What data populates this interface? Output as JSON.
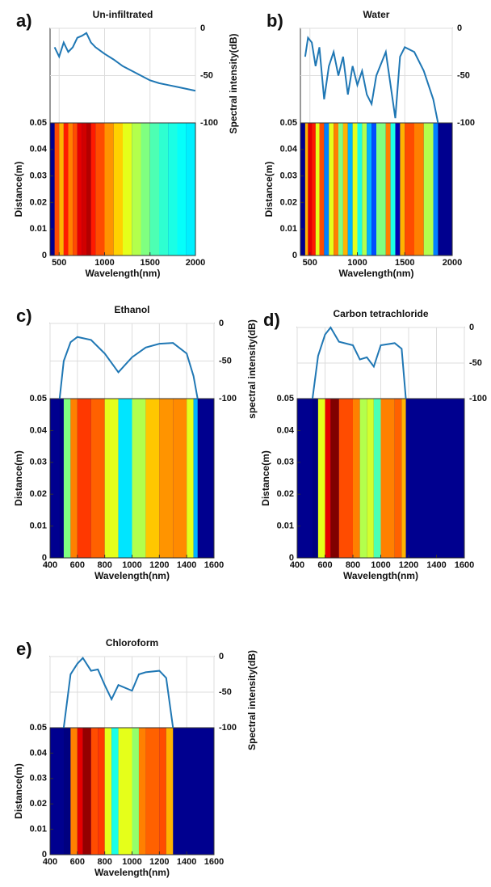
{
  "chart_data": [
    {
      "type": "line",
      "panel_label": "a)",
      "title": "Un-infiltrated",
      "x_label": "Wavelength(nm)",
      "y_label": "Distance(m)",
      "y2_label": "Spectral intensity(dB)",
      "x": [
        450,
        500,
        550,
        600,
        650,
        700,
        750,
        800,
        850,
        900,
        1000,
        1100,
        1200,
        1300,
        1400,
        1500,
        1600,
        1700,
        1800,
        1900,
        2000
      ],
      "values": [
        -20,
        -30,
        -15,
        -25,
        -20,
        -10,
        -8,
        -5,
        -15,
        -20,
        -27,
        -33,
        -40,
        -45,
        -50,
        -55,
        -58,
        -60,
        -62,
        -64,
        -66
      ],
      "color": "#1f77b4",
      "xlim": [
        400,
        2000
      ],
      "xticks": [
        500,
        1000,
        1500,
        2000
      ],
      "ylim": [
        0,
        0.05
      ],
      "yticks": [
        0,
        0.01,
        0.02,
        0.03,
        0.04,
        0.05
      ],
      "y2lim": [
        -100,
        0
      ],
      "y2ticks": [
        0,
        -50,
        -100
      ]
    },
    {
      "type": "line",
      "panel_label": "b)",
      "title": "Water",
      "x_label": "Wavelength(nm)",
      "y_label": "Distance(m)",
      "x": [
        450,
        480,
        520,
        560,
        600,
        650,
        700,
        750,
        800,
        850,
        900,
        950,
        1000,
        1050,
        1100,
        1150,
        1200,
        1300,
        1350,
        1400,
        1450,
        1500,
        1600,
        1700,
        1800,
        1850
      ],
      "values": [
        -30,
        -10,
        -15,
        -40,
        -20,
        -75,
        -40,
        -25,
        -50,
        -30,
        -70,
        -40,
        -60,
        -45,
        -70,
        -80,
        -50,
        -25,
        -60,
        -95,
        -30,
        -20,
        -25,
        -45,
        -75,
        -100
      ],
      "color": "#1f77b4",
      "xlim": [
        400,
        2000
      ],
      "xticks": [
        500,
        1000,
        1500,
        2000
      ],
      "ylim": [
        0,
        0.05
      ],
      "yticks": [
        0,
        0.01,
        0.02,
        0.03,
        0.04,
        0.05
      ],
      "y2lim": [
        -100,
        0
      ],
      "y2ticks": [
        0,
        -50,
        -100
      ]
    },
    {
      "type": "line",
      "panel_label": "c)",
      "title": "Ethanol",
      "x_label": "Wavelength(nm)",
      "y_label": "Distance(m)",
      "y2_label": "spectral intensity(dB)",
      "x": [
        470,
        500,
        550,
        600,
        700,
        800,
        900,
        1000,
        1100,
        1200,
        1300,
        1400,
        1450,
        1480
      ],
      "values": [
        -100,
        -50,
        -25,
        -18,
        -22,
        -40,
        -65,
        -45,
        -32,
        -27,
        -26,
        -40,
        -70,
        -100
      ],
      "color": "#1f77b4",
      "xlim": [
        400,
        1600
      ],
      "xticks": [
        400,
        600,
        800,
        1000,
        1200,
        1400,
        1600
      ],
      "ylim": [
        0,
        0.05
      ],
      "yticks": [
        0,
        0.01,
        0.02,
        0.03,
        0.04,
        0.05
      ],
      "y2lim": [
        -100,
        0
      ],
      "y2ticks": [
        0,
        -50,
        -100
      ]
    },
    {
      "type": "line",
      "panel_label": "d)",
      "title": "Carbon tetrachloride",
      "x_label": "Wavelength(nm)",
      "y_label": "Distance(m)",
      "x": [
        510,
        550,
        600,
        640,
        700,
        800,
        850,
        900,
        950,
        1000,
        1100,
        1150,
        1180
      ],
      "values": [
        -100,
        -40,
        -10,
        0,
        -20,
        -25,
        -45,
        -42,
        -55,
        -25,
        -22,
        -30,
        -100
      ],
      "color": "#1f77b4",
      "xlim": [
        400,
        1600
      ],
      "xticks": [
        400,
        600,
        800,
        1000,
        1200,
        1400,
        1600
      ],
      "ylim": [
        0,
        0.05
      ],
      "yticks": [
        0,
        0.01,
        0.02,
        0.03,
        0.04,
        0.05
      ],
      "y2lim": [
        -100,
        0
      ],
      "y2ticks": [
        0,
        -50,
        -100
      ]
    },
    {
      "type": "line",
      "panel_label": "e)",
      "title": "Chloroform",
      "x_label": "Wavelength(nm)",
      "y_label": "Distance(m)",
      "y2_label": "Spectral intensity(dB)",
      "x": [
        500,
        550,
        600,
        640,
        700,
        750,
        800,
        850,
        900,
        1000,
        1050,
        1100,
        1200,
        1250,
        1300
      ],
      "values": [
        -100,
        -25,
        -10,
        -2,
        -20,
        -18,
        -40,
        -60,
        -40,
        -48,
        -25,
        -22,
        -20,
        -30,
        -100
      ],
      "color": "#1f77b4",
      "xlim": [
        400,
        1600
      ],
      "xticks": [
        400,
        600,
        800,
        1000,
        1200,
        1400,
        1600
      ],
      "ylim": [
        0,
        0.05
      ],
      "yticks": [
        0,
        0.01,
        0.02,
        0.03,
        0.04,
        0.05
      ],
      "y2lim": [
        -100,
        0
      ],
      "y2ticks": [
        0,
        -50,
        -100
      ]
    }
  ]
}
